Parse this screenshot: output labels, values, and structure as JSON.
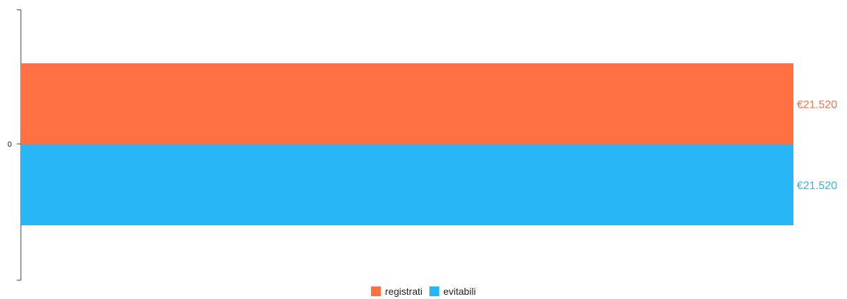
{
  "chart_data": {
    "type": "bar",
    "orientation": "horizontal",
    "categories": [
      "0"
    ],
    "series": [
      {
        "name": "registrati",
        "values": [
          21520
        ],
        "label": "€21.520",
        "color": "#ff7043"
      },
      {
        "name": "evitabili",
        "values": [
          21520
        ],
        "label": "€21.520",
        "color": "#29b6f6"
      }
    ],
    "tick_labels": [
      "0"
    ],
    "xlim": [
      0,
      21520
    ],
    "grid": false,
    "legend": "bottom-center"
  }
}
